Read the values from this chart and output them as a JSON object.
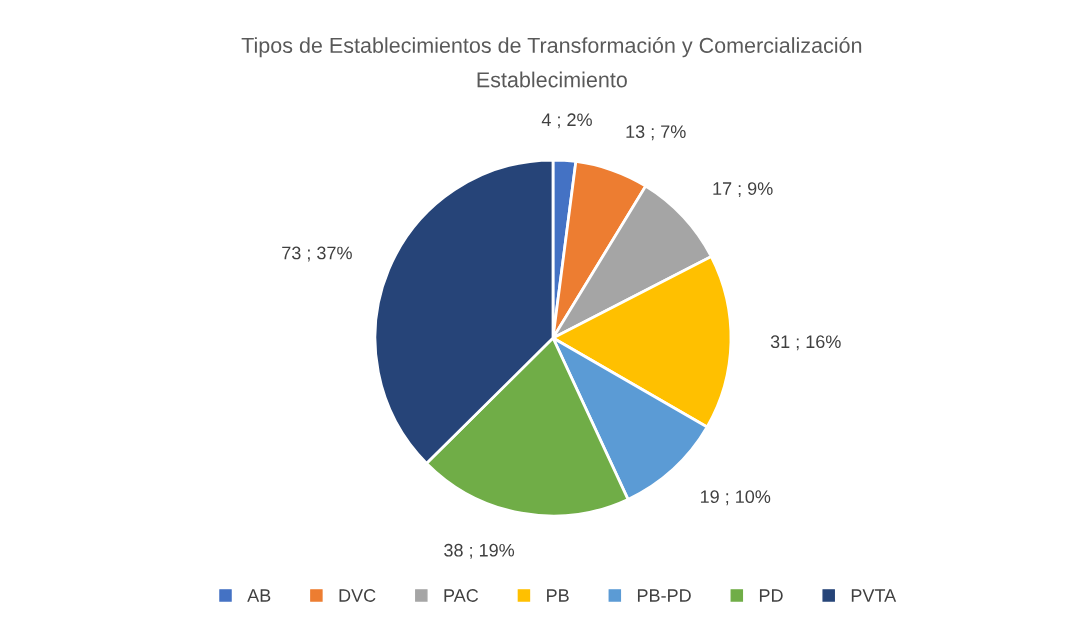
{
  "chart_data": {
    "type": "pie",
    "title": "Tipos de Establecimientos de Transformación y Comercialización",
    "subtitle": "Establecimiento",
    "categories": [
      "AB",
      "DVC",
      "PAC",
      "PB",
      "PB-PD",
      "PD",
      "PVTA"
    ],
    "values": [
      4,
      13,
      17,
      31,
      19,
      38,
      73
    ],
    "colors": [
      "#4472c4",
      "#ed7d31",
      "#a5a5a5",
      "#ffc000",
      "#5b9bd5",
      "#70ad47",
      "#264478"
    ],
    "value_labels": [
      "4 ; 2%",
      "13 ; 7%",
      "17 ; 9%",
      "31 ; 16%",
      "19 ; 10%",
      "38 ; 19%",
      "73 ; 37%"
    ],
    "legend": "bottom"
  }
}
